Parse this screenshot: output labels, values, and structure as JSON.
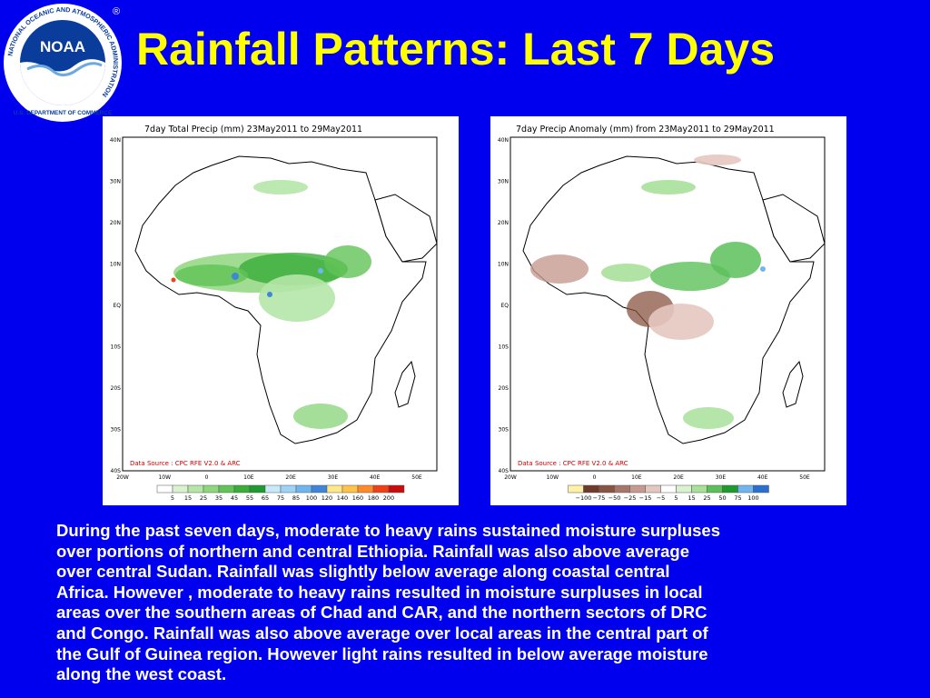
{
  "slide": {
    "title": "Rainfall Patterns: Last 7 Days",
    "caption_lines": [
      "During the past seven days, moderate to heavy rains sustained  moisture surpluses",
      "over portions of northern and central Ethiopia.  Rainfall was also above average",
      "over central Sudan.  Rainfall was slightly below average  along coastal central",
      "Africa.  However , moderate to heavy rains resulted in moisture surpluses in local",
      "areas over the southern areas of Chad and CAR, and the northern sectors of DRC",
      "and Congo.  Rainfall was also above average over local areas in the central part of",
      "the Gulf of Guinea region.   However light rains resulted in below average moisture",
      "along the west coast."
    ]
  },
  "logo": {
    "text": "NOAA",
    "ring_text": "NATIONAL OCEANIC AND ATMOSPHERIC ADMINISTRATION",
    "bottom_text": "U.S. DEPARTMENT OF COMMERCE",
    "registered": "®"
  },
  "maps": [
    {
      "title": "7day Total Precip (mm)   23May2011 to 29May2011",
      "source": "Data Source : CPC RFE V2.0 & ARC",
      "lat_labels": [
        "40N",
        "30N",
        "20N",
        "10N",
        "EQ",
        "10S",
        "20S",
        "30S",
        "40S"
      ],
      "lon_labels": [
        "20W",
        "10W",
        "0",
        "10E",
        "20E",
        "30E",
        "40E",
        "50E"
      ],
      "legend_labels": [
        "5",
        "15",
        "25",
        "35",
        "45",
        "55",
        "65",
        "75",
        "85",
        "100",
        "120",
        "140",
        "160",
        "180",
        "200"
      ],
      "legend_colors": [
        "#ffffff",
        "#d9f2d0",
        "#b5e6a8",
        "#8fd67e",
        "#62c356",
        "#38ad38",
        "#1f9a2e",
        "#c8eaf8",
        "#9fd3f5",
        "#6fb6ee",
        "#3f86da",
        "#ffe88a",
        "#ffc24a",
        "#ff8a2a",
        "#f04018",
        "#c80c0c"
      ]
    },
    {
      "title": "7day Precip Anomaly (mm) from 23May2011 to 29May2011",
      "source": "Data Source : CPC RFE V2.0 & ARC",
      "lat_labels": [
        "40N",
        "30N",
        "20N",
        "10N",
        "EQ",
        "10S",
        "20S",
        "30S",
        "40S"
      ],
      "lon_labels": [
        "20W",
        "10W",
        "0",
        "10E",
        "20E",
        "30E",
        "40E",
        "50E"
      ],
      "legend_labels": [
        "−100",
        "−75",
        "−50",
        "−25",
        "−15",
        "−5",
        "5",
        "15",
        "25",
        "50",
        "75",
        "100"
      ],
      "legend_colors": [
        "#fff2a8",
        "#6e3a2c",
        "#8a5442",
        "#a6766a",
        "#c59a90",
        "#e4c8c0",
        "#ffffff",
        "#d9f2d0",
        "#a8e09a",
        "#5cc05a",
        "#1f9a2e",
        "#6fb6ee",
        "#2a6ed0"
      ]
    }
  ]
}
